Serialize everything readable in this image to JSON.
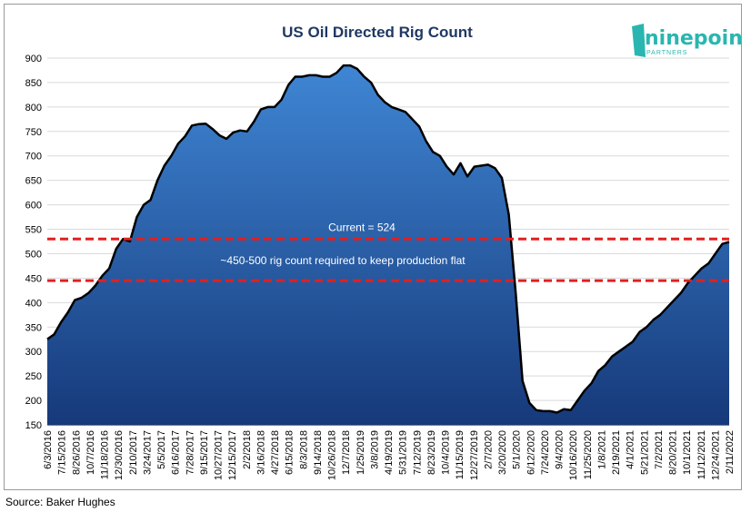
{
  "chart_data": {
    "type": "area",
    "title": "US Oil Directed Rig Count",
    "ylim": [
      150,
      900
    ],
    "yticks": [
      150,
      200,
      250,
      300,
      350,
      400,
      450,
      500,
      550,
      600,
      650,
      700,
      750,
      800,
      850,
      900
    ],
    "xtick_labels": [
      "6/3/2016",
      "7/15/2016",
      "8/26/2016",
      "10/7/2016",
      "11/18/2016",
      "12/30/2016",
      "2/10/2017",
      "3/24/2017",
      "5/5/2017",
      "6/16/2017",
      "7/28/2017",
      "9/15/2017",
      "10/27/2017",
      "12/15/2017",
      "2/2/2018",
      "3/16/2018",
      "4/27/2018",
      "6/15/2018",
      "8/3/2018",
      "9/14/2018",
      "10/26/2018",
      "12/7/2018",
      "1/25/2019",
      "3/8/2019",
      "4/19/2019",
      "5/31/2019",
      "7/12/2019",
      "8/23/2019",
      "10/4/2019",
      "11/15/2019",
      "12/27/2019",
      "2/7/2020",
      "3/20/2020",
      "5/1/2020",
      "6/12/2020",
      "7/24/2020",
      "9/4/2020",
      "10/16/2020",
      "11/25/2020",
      "1/8/2021",
      "2/19/2021",
      "4/1/2021",
      "5/21/2021",
      "7/2/2021",
      "8/20/2021",
      "10/1/2021",
      "11/12/2021",
      "12/24/2021",
      "2/11/2022"
    ],
    "series": [
      {
        "values": [
          325,
          335,
          360,
          380,
          405,
          410,
          420,
          435,
          455,
          470,
          510,
          530,
          525,
          575,
          600,
          610,
          650,
          680,
          700,
          725,
          740,
          762,
          765,
          766,
          755,
          742,
          735,
          748,
          752,
          750,
          770,
          795,
          800,
          800,
          815,
          845,
          862,
          862,
          865,
          865,
          862,
          862,
          870,
          885,
          885,
          878,
          862,
          850,
          825,
          810,
          800,
          795,
          790,
          775,
          760,
          730,
          708,
          700,
          678,
          662,
          685,
          658,
          678,
          680,
          682,
          675,
          655,
          580,
          420,
          240,
          195,
          180,
          178,
          178,
          175,
          182,
          180,
          200,
          220,
          235,
          260,
          272,
          290,
          300,
          310,
          320,
          340,
          350,
          365,
          375,
          390,
          405,
          420,
          440,
          455,
          470,
          480,
          500,
          520,
          524
        ]
      }
    ],
    "hlines": [
      {
        "value": 530,
        "label": "Current = 524",
        "color": "#e02020"
      },
      {
        "value": 445,
        "label": "~450-500 rig count required to keep production flat",
        "color": "#e02020"
      }
    ],
    "colors": {
      "area_top": "#3f86d4",
      "area_bottom": "#16397a",
      "line": "#000000",
      "title": "#1f3864"
    }
  },
  "logo": {
    "main": "ninepoint",
    "sub": "PARTNERS"
  },
  "source": "Source:  Baker Hughes"
}
